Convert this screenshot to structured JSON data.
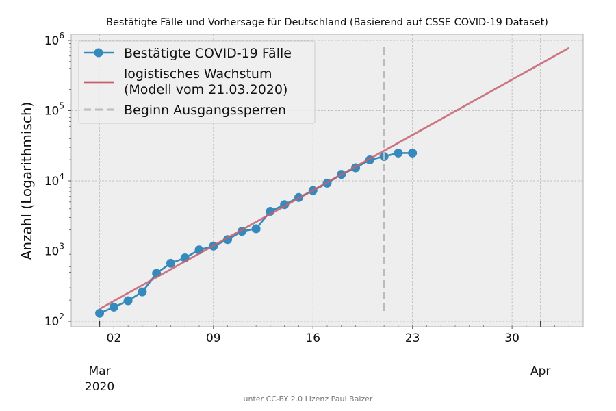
{
  "chart_data": {
    "type": "line",
    "title": "Bestätigte Fälle und Vorhersage für Deutschland (Basierend auf CSSE COVID-19 Dataset)",
    "xlabel": "",
    "ylabel": "Anzahl (Logarithmisch)",
    "y_scale": "log",
    "ylim": [
      100,
      1000000
    ],
    "xlim": [
      "2020-02-28",
      "2020-04-04"
    ],
    "grid": true,
    "legend_position": "top-left",
    "x_ticks_major": [
      {
        "date": "2020-03-01",
        "label": "Mar",
        "sublabel": "2020"
      },
      {
        "date": "2020-04-01",
        "label": "Apr",
        "sublabel": ""
      }
    ],
    "x_ticks_minor": [
      {
        "date": "2020-03-02",
        "label": "02"
      },
      {
        "date": "2020-03-09",
        "label": "09"
      },
      {
        "date": "2020-03-16",
        "label": "16"
      },
      {
        "date": "2020-03-23",
        "label": "23"
      },
      {
        "date": "2020-03-30",
        "label": "30"
      }
    ],
    "y_ticks": [
      {
        "value": 100,
        "base": "10",
        "exp": "2"
      },
      {
        "value": 1000,
        "base": "10",
        "exp": "3"
      },
      {
        "value": 10000,
        "base": "10",
        "exp": "4"
      },
      {
        "value": 100000,
        "base": "10",
        "exp": "5"
      },
      {
        "value": 1000000,
        "base": "10",
        "exp": "6"
      }
    ],
    "series": [
      {
        "name": "Bestätigte COVID-19 Fälle",
        "kind": "line-markers",
        "color": "#348abd",
        "x": [
          "2020-03-01",
          "2020-03-02",
          "2020-03-03",
          "2020-03-04",
          "2020-03-05",
          "2020-03-06",
          "2020-03-07",
          "2020-03-08",
          "2020-03-09",
          "2020-03-10",
          "2020-03-11",
          "2020-03-12",
          "2020-03-13",
          "2020-03-14",
          "2020-03-15",
          "2020-03-16",
          "2020-03-17",
          "2020-03-18",
          "2020-03-19",
          "2020-03-20",
          "2020-03-21",
          "2020-03-22",
          "2020-03-23"
        ],
        "y": [
          130,
          159,
          196,
          262,
          482,
          670,
          799,
          1040,
          1176,
          1457,
          1908,
          2078,
          3675,
          4585,
          5795,
          7272,
          9257,
          12327,
          15320,
          19848,
          22213,
          24873,
          24873
        ]
      },
      {
        "name": "logistisches Wachstum\n(Modell vom 21.03.2020)",
        "kind": "line",
        "color": "#c4606e",
        "x": [
          "2020-03-01",
          "2020-04-03"
        ],
        "y": [
          150,
          780000
        ]
      },
      {
        "name": "Beginn Ausgangssperren",
        "kind": "vline-dashed",
        "color": "#bbbbbb",
        "x": "2020-03-21",
        "y_range": [
          140,
          800000
        ]
      }
    ]
  },
  "credit": "unter CC-BY 2.0 Lizenz Paul Balzer"
}
